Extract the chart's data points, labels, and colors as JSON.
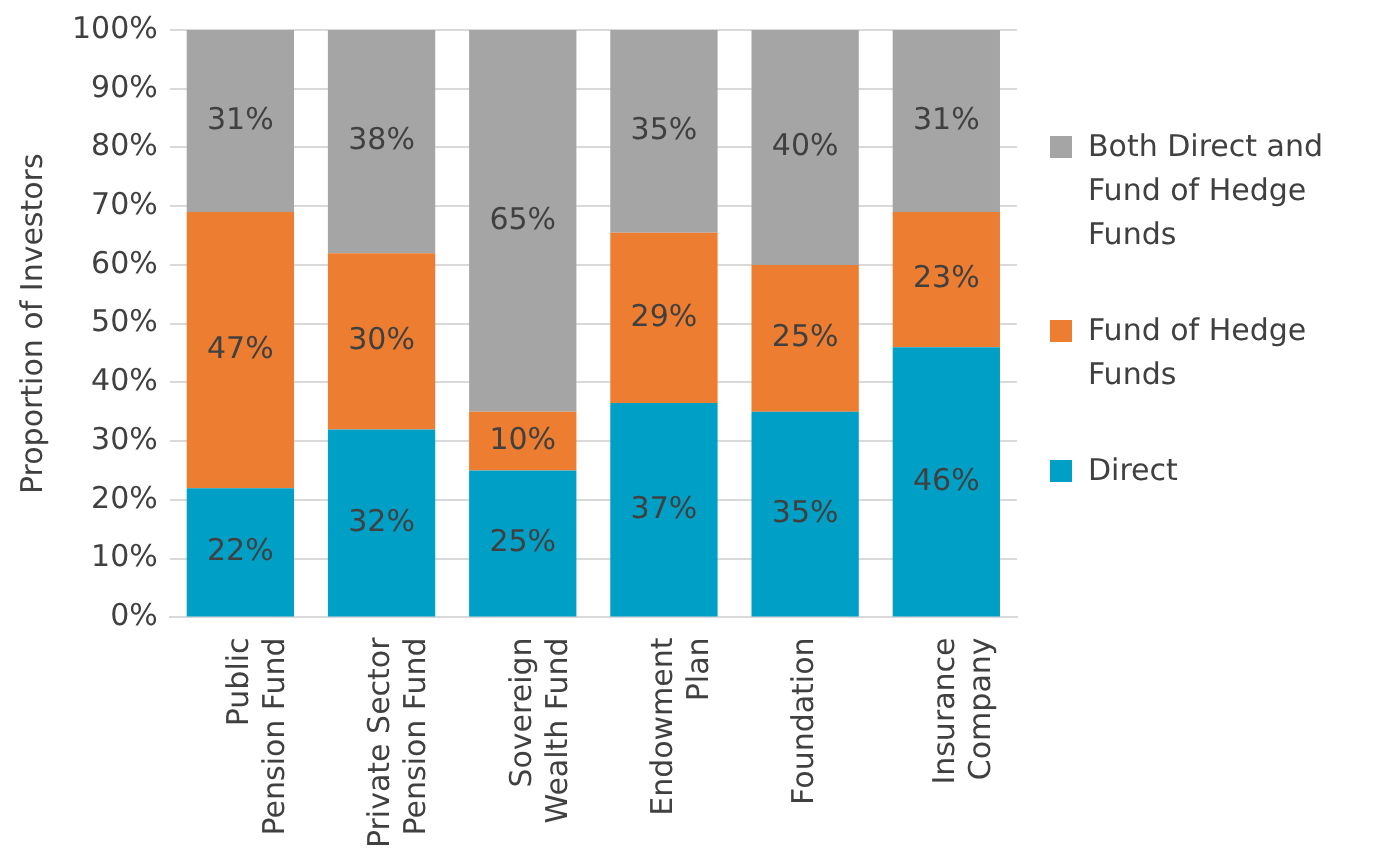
{
  "chart_data": {
    "type": "bar",
    "stacked": true,
    "ylabel": "Proportion of Investors",
    "categories": [
      "Public Pension Fund",
      "Private Sector Pension Fund",
      "Sovereign Wealth Fund",
      "Endowment Plan",
      "Foundation",
      "Insurance Company"
    ],
    "series": [
      {
        "name": "Direct",
        "color": "#00a0c6",
        "values": [
          22,
          32,
          25,
          36.5,
          35,
          46
        ],
        "value_labels": [
          "22%",
          "32%",
          "25%",
          "37%",
          "35%",
          "46%"
        ]
      },
      {
        "name": "Fund of Hedge Funds",
        "color": "#ed7d31",
        "values": [
          47,
          30,
          10,
          29,
          25,
          23
        ],
        "value_labels": [
          "47%",
          "30%",
          "10%",
          "29%",
          "25%",
          "23%"
        ]
      },
      {
        "name": "Both Direct and Fund of Hedge Funds",
        "color": "#a5a5a5",
        "values": [
          31,
          38,
          65,
          34.5,
          40,
          31
        ],
        "value_labels": [
          "31%",
          "38%",
          "65%",
          "35%",
          "40%",
          "31%"
        ]
      }
    ],
    "ylim": [
      0,
      100
    ],
    "yticks": [
      {
        "value": 0,
        "label": "0%"
      },
      {
        "value": 10,
        "label": "10%"
      },
      {
        "value": 20,
        "label": "20%"
      },
      {
        "value": 30,
        "label": "30%"
      },
      {
        "value": 40,
        "label": "40%"
      },
      {
        "value": 50,
        "label": "50%"
      },
      {
        "value": 60,
        "label": "60%"
      },
      {
        "value": 70,
        "label": "70%"
      },
      {
        "value": 80,
        "label": "80%"
      },
      {
        "value": 90,
        "label": "90%"
      },
      {
        "value": 100,
        "label": "100%"
      }
    ],
    "grid": "y",
    "legend": "right"
  }
}
